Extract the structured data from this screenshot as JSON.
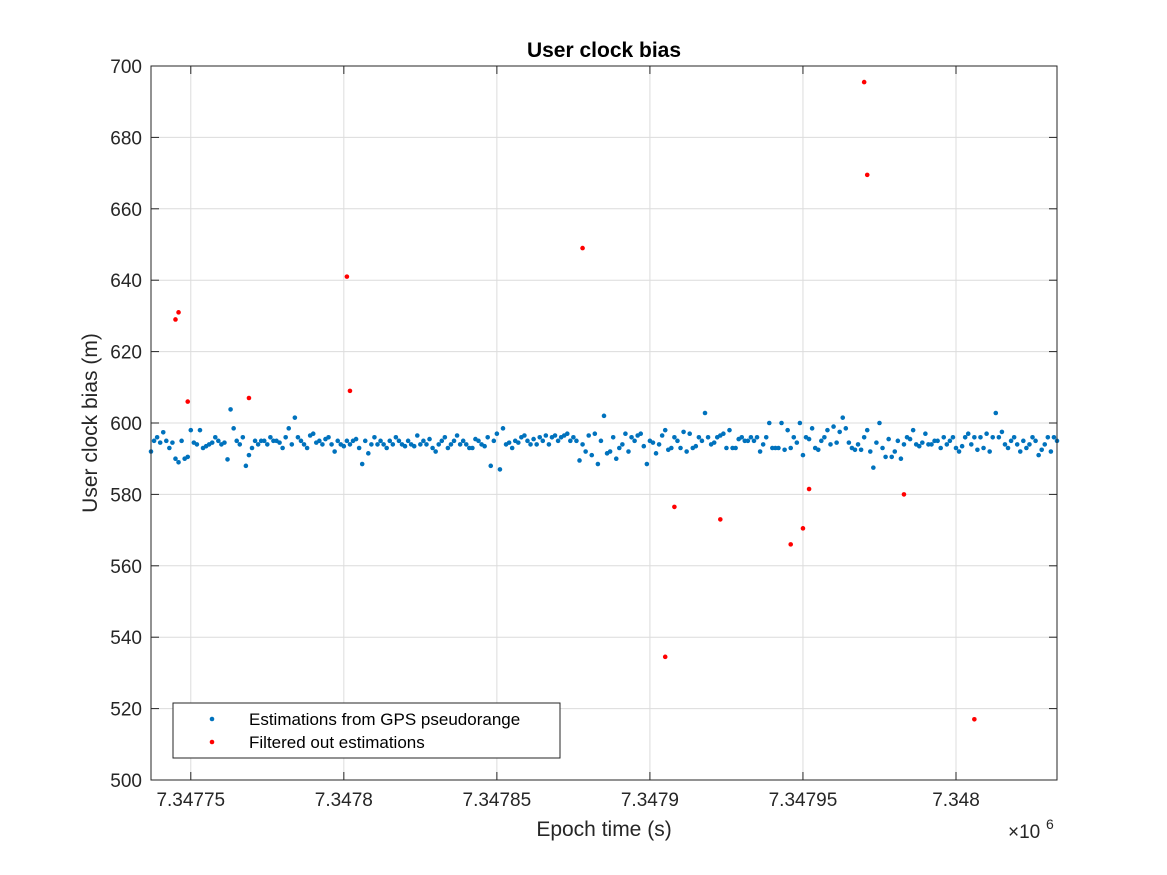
{
  "chart_data": {
    "type": "scatter",
    "title": "User clock bias",
    "xlabel": "Epoch time (s)",
    "ylabel": "User clock bias (m)",
    "x_exponent_base": "×10",
    "x_exponent_power": "6",
    "xlim": [
      7347737,
      7348033
    ],
    "ylim": [
      500,
      700
    ],
    "grid": true,
    "legend_position": "bottom-left",
    "x_ticks": [
      7347750,
      7347800,
      7347850,
      7347900,
      7347950,
      7348000
    ],
    "x_tick_labels": [
      "7.34775",
      "7.3478",
      "7.34785",
      "7.3479",
      "7.34795",
      "7.348"
    ],
    "y_ticks": [
      500,
      520,
      540,
      560,
      580,
      600,
      620,
      640,
      660,
      680,
      700
    ],
    "y_tick_labels": [
      "500",
      "520",
      "540",
      "560",
      "580",
      "600",
      "620",
      "640",
      "660",
      "680",
      "700"
    ],
    "series": [
      {
        "name": "Estimations from GPS pseudorange",
        "color": "#0072BD",
        "x_start": 7347737,
        "x_step": 1,
        "y": [
          592.0,
          595.0,
          596.0,
          594.5,
          597.4,
          595.0,
          593.0,
          594.5,
          590.0,
          589.0,
          595.0,
          590.0,
          590.5,
          598.0,
          594.5,
          594.0,
          598.0,
          593.0,
          593.5,
          594.0,
          594.5,
          596.0,
          595.0,
          594.0,
          594.5,
          589.8,
          603.8,
          598.5,
          595.0,
          594.0,
          596.0,
          588.0,
          591.0,
          593.0,
          595.0,
          594.0,
          595.0,
          595.0,
          594.0,
          596.0,
          595.0,
          595.0,
          594.5,
          593.0,
          596.0,
          598.5,
          594.0,
          601.5,
          596.0,
          595.0,
          594.0,
          593.0,
          596.5,
          597.0,
          594.5,
          595.0,
          594.0,
          595.5,
          596.0,
          594.0,
          592.0,
          595.0,
          594.0,
          593.5,
          595.0,
          594.0,
          595.0,
          595.5,
          593.0,
          588.5,
          595.0,
          591.5,
          594.0,
          596.0,
          594.0,
          595.0,
          594.0,
          593.0,
          595.0,
          594.0,
          596.0,
          595.0,
          594.0,
          593.5,
          595.0,
          594.0,
          593.5,
          596.5,
          594.0,
          595.0,
          594.0,
          595.5,
          593.0,
          592.0,
          594.0,
          595.0,
          596.0,
          593.0,
          594.0,
          595.0,
          596.5,
          594.0,
          595.0,
          594.0,
          593.0,
          593.0,
          595.5,
          595.0,
          594.0,
          593.5,
          596.0,
          588.0,
          595.0,
          597.0,
          587.0,
          598.5,
          594.0,
          594.5,
          593.0,
          595.0,
          594.5,
          596.0,
          596.5,
          595.0,
          594.0,
          595.5,
          594.0,
          596.0,
          595.0,
          596.5,
          594.0,
          596.0,
          596.5,
          595.0,
          596.0,
          596.5,
          597.0,
          595.0,
          596.0,
          595.0,
          589.5,
          594.0,
          592.0,
          596.5,
          591.0,
          597.0,
          588.5,
          595.0,
          602.0,
          591.5,
          592.0,
          596.0,
          590.0,
          593.0,
          594.0,
          597.0,
          592.0,
          596.0,
          595.0,
          596.5,
          597.0,
          593.5,
          588.5,
          595.0,
          594.5,
          591.5,
          594.0,
          596.5,
          598.0,
          592.5,
          593.0,
          596.0,
          595.0,
          593.0,
          597.5,
          592.0,
          597.0,
          593.0,
          593.5,
          596.0,
          595.0,
          602.8,
          596.0,
          594.0,
          594.5,
          596.0,
          596.5,
          597.0,
          593.0,
          598.0,
          593.0,
          593.0,
          595.5,
          596.0,
          595.0,
          595.0,
          596.0,
          595.0,
          596.0,
          592.0,
          594.0,
          596.0,
          600.0,
          593.0,
          593.0,
          593.0,
          600.0,
          592.5,
          598.0,
          593.0,
          596.0,
          594.5,
          600.0,
          591.0,
          596.0,
          595.5,
          598.5,
          593.0,
          592.5,
          595.0,
          596.0,
          598.0,
          594.0,
          599.0,
          594.5,
          597.5,
          601.5,
          598.5,
          594.5,
          593.0,
          592.5,
          594.0,
          592.5,
          596.0,
          598.0,
          592.0,
          587.5,
          594.5,
          600.0,
          593.0,
          590.5,
          595.5,
          590.5,
          592.0,
          595.0,
          590.0,
          594.0,
          596.0,
          595.5,
          598.0,
          594.0,
          593.5,
          594.5,
          597.0,
          594.0,
          594.0,
          595.0,
          595.0,
          593.0,
          596.0,
          594.0,
          595.0,
          596.0,
          593.0,
          592.0,
          593.5,
          596.0,
          597.0,
          594.0,
          596.0,
          592.5,
          596.0,
          593.0,
          597.0,
          592.0,
          596.0,
          602.8,
          596.0,
          597.5,
          594.0,
          593.0,
          595.0,
          596.0,
          594.0,
          592.0,
          595.0,
          593.0,
          594.0,
          596.0,
          595.0,
          591.0,
          592.5,
          594.0,
          596.0,
          592.0,
          596.0,
          595.0,
          593.0,
          590.0,
          595.0,
          592.5,
          597.0,
          596.0,
          595.0,
          593.0,
          592.5,
          596.0,
          594.0,
          595.0,
          594.0,
          589.0,
          594.5,
          595.0,
          595.0,
          596.0
        ]
      },
      {
        "name": "Filtered out estimations",
        "color": "#FF0000",
        "x": [
          7347745.0,
          7347746.0,
          7347749.0,
          7347769.0,
          7347801.0,
          7347802.0,
          7347878.0,
          7347905.0,
          7347908.0,
          7347923.0,
          7347946.0,
          7347950.0,
          7347952.0,
          7347970.0,
          7347971.0,
          7347983.0,
          7348006.0
        ],
        "y": [
          629.0,
          631.0,
          606.0,
          607.0,
          641.0,
          609.0,
          649.0,
          534.5,
          576.5,
          573.0,
          566.0,
          570.5,
          581.5,
          695.5,
          669.5,
          580.0,
          517.0
        ]
      }
    ]
  }
}
